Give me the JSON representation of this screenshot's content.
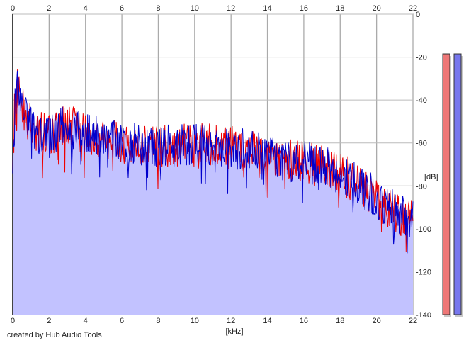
{
  "credit": "created by Hub Audio Tools",
  "chart_data": {
    "type": "line",
    "xlabel": "[kHz]",
    "ylabel": "[dB]",
    "xlim": [
      0,
      22
    ],
    "ylim": [
      -140,
      0
    ],
    "x_ticks": [
      0,
      2,
      4,
      6,
      8,
      10,
      12,
      14,
      16,
      18,
      20,
      22
    ],
    "y_ticks": [
      0,
      -20,
      -40,
      -60,
      -80,
      -100,
      -120,
      -140
    ],
    "grid": true,
    "envelope": [
      [
        0,
        -75
      ],
      [
        0.1,
        -45
      ],
      [
        0.25,
        -33
      ],
      [
        0.5,
        -42
      ],
      [
        0.8,
        -48
      ],
      [
        1.2,
        -55
      ],
      [
        2,
        -56
      ],
      [
        3,
        -52
      ],
      [
        4,
        -55
      ],
      [
        5,
        -57
      ],
      [
        6,
        -60
      ],
      [
        7,
        -61
      ],
      [
        8,
        -62
      ],
      [
        9,
        -61
      ],
      [
        10,
        -60
      ],
      [
        11,
        -61
      ],
      [
        12,
        -62
      ],
      [
        13,
        -64
      ],
      [
        14,
        -66
      ],
      [
        15,
        -68
      ],
      [
        16,
        -69
      ],
      [
        17,
        -71
      ],
      [
        18,
        -74
      ],
      [
        19,
        -79
      ],
      [
        20,
        -86
      ],
      [
        21,
        -92
      ],
      [
        21.5,
        -95
      ],
      [
        22,
        -96
      ]
    ],
    "series": [
      {
        "name": "",
        "color": "#ee0000"
      },
      {
        "name": "",
        "color": "#0000cc"
      }
    ],
    "fill_color": "#c2c2ff",
    "level_meters": [
      {
        "color": "#ee7777"
      },
      {
        "color": "#7777ee"
      }
    ]
  }
}
